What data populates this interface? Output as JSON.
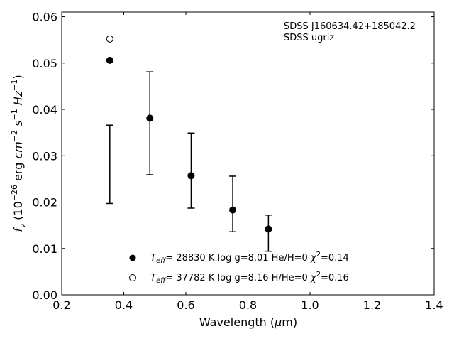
{
  "chart_data": {
    "type": "scatter",
    "xlabel": "Wavelength (μm)",
    "ylabel": "f_ν (10^-26 erg cm^-2 s^-1 Hz^-1)",
    "xlim": [
      0.2,
      1.4
    ],
    "ylim": [
      0.0,
      0.061
    ],
    "xticks": [
      "0.2",
      "0.4",
      "0.6",
      "0.8",
      "1.0",
      "1.2",
      "1.4"
    ],
    "yticks": [
      "0.00",
      "0.01",
      "0.02",
      "0.03",
      "0.04",
      "0.05",
      "0.06"
    ],
    "annotation": [
      "SDSS J160634.42+185042.2",
      "SDSS ugriz"
    ],
    "errorbars": {
      "x": [
        0.355,
        0.484,
        0.617,
        0.751,
        0.866
      ],
      "low": [
        0.0197,
        0.0259,
        0.0187,
        0.0136,
        0.0094
      ],
      "high": [
        0.0366,
        0.0481,
        0.0349,
        0.0256,
        0.0172
      ]
    },
    "series": [
      {
        "marker": "filled",
        "legend": "T_eff= 28830 K  log g=8.01  He/H=0  χ²=0.14",
        "x": [
          0.355,
          0.484,
          0.617,
          0.751,
          0.866
        ],
        "y": [
          0.0506,
          0.0381,
          0.0257,
          0.0183,
          0.0142
        ]
      },
      {
        "marker": "open",
        "legend": "T_eff= 37782 K  log g=8.16  H/He=0  χ²=0.16",
        "x": [
          0.355
        ],
        "y": [
          0.0552
        ]
      }
    ],
    "legend_position": "lower-center",
    "grid": false
  }
}
